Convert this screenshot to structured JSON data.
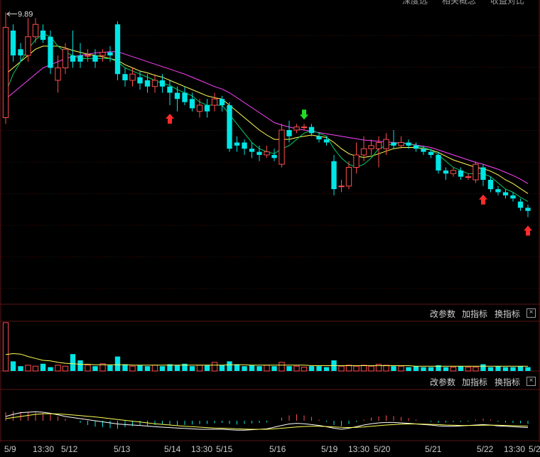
{
  "header": {
    "tabs": [
      "深度选",
      "相关概念",
      "收益对比"
    ]
  },
  "panels": [
    {
      "id": "volume",
      "buttons": [
        "改参数",
        "加指标",
        "换指标"
      ],
      "close_glyph": "×"
    },
    {
      "id": "indicator",
      "buttons": [
        "改参数",
        "加指标",
        "换指标"
      ],
      "close_glyph": "×"
    }
  ],
  "chart_data": {
    "type": "candlestick",
    "high_marker": "9.89",
    "xaxis_labels": [
      "5/9",
      "13:30",
      "5/12",
      "5/13",
      "5/14",
      "13:30",
      "5/15",
      "5/16",
      "5/19",
      "13:30",
      "5/20",
      "5/21",
      "5/22",
      "13:30",
      "5/2"
    ],
    "ylim": [
      5.2,
      10.0
    ],
    "colors": {
      "up": "#ff4d4d",
      "down": "#00e5e5",
      "ma5": "#ffffff",
      "ma10": "#ffff55",
      "ma20": "#00cc66",
      "ma30": "#ff44ff",
      "buy_arrow": "#ff2a2a",
      "sell_arrow": "#22dd22"
    },
    "candles": [
      [
        8.2,
        9.65,
        9.89,
        8.1
      ],
      [
        9.6,
        9.2,
        9.7,
        9.1
      ],
      [
        9.3,
        9.2,
        9.4,
        9.1
      ],
      [
        9.2,
        9.5,
        9.8,
        9.1
      ],
      [
        9.5,
        9.7,
        9.8,
        9.4
      ],
      [
        9.6,
        9.45,
        9.7,
        9.4
      ],
      [
        9.5,
        9.0,
        9.6,
        8.9
      ],
      [
        8.8,
        9.0,
        9.2,
        8.6
      ],
      [
        9.0,
        9.3,
        9.4,
        8.9
      ],
      [
        9.2,
        9.1,
        9.6,
        9.0
      ],
      [
        9.2,
        9.1,
        9.4,
        9.0
      ],
      [
        9.2,
        9.2,
        9.3,
        9.1
      ],
      [
        9.2,
        9.1,
        9.3,
        9.0
      ],
      [
        9.2,
        9.25,
        9.3,
        9.1
      ],
      [
        9.25,
        9.2,
        9.35,
        9.1
      ],
      [
        9.7,
        8.9,
        9.75,
        8.8
      ],
      [
        8.9,
        8.8,
        9.0,
        8.7
      ],
      [
        8.8,
        8.9,
        9.0,
        8.7
      ],
      [
        8.85,
        8.75,
        8.95,
        8.65
      ],
      [
        8.8,
        8.7,
        8.9,
        8.6
      ],
      [
        8.7,
        8.8,
        8.9,
        8.6
      ],
      [
        8.8,
        8.7,
        8.9,
        8.6
      ],
      [
        8.7,
        8.6,
        8.8,
        8.4
      ],
      [
        8.6,
        8.5,
        8.7,
        8.3
      ],
      [
        8.6,
        8.45,
        8.7,
        8.4
      ],
      [
        8.5,
        8.35,
        8.6,
        8.3
      ],
      [
        8.3,
        8.4,
        8.5,
        8.2
      ],
      [
        8.4,
        8.3,
        8.5,
        8.2
      ],
      [
        8.4,
        8.5,
        8.6,
        8.3
      ],
      [
        8.5,
        8.4,
        8.55,
        8.3
      ],
      [
        8.4,
        7.7,
        8.45,
        7.65
      ],
      [
        7.8,
        7.75,
        7.9,
        7.65
      ],
      [
        7.8,
        7.7,
        7.85,
        7.6
      ],
      [
        7.7,
        7.65,
        7.8,
        7.55
      ],
      [
        7.65,
        7.6,
        7.75,
        7.5
      ],
      [
        7.6,
        7.65,
        7.75,
        7.55
      ],
      [
        7.6,
        7.55,
        7.7,
        7.5
      ],
      [
        7.45,
        8.0,
        8.1,
        7.4
      ],
      [
        8.0,
        7.9,
        8.15,
        7.8
      ],
      [
        8.0,
        8.05,
        8.1,
        7.95
      ],
      [
        8.05,
        8.05,
        8.1,
        8.0
      ],
      [
        8.05,
        7.95,
        8.1,
        7.9
      ],
      [
        7.9,
        7.85,
        7.95,
        7.8
      ],
      [
        7.85,
        7.8,
        7.9,
        7.75
      ],
      [
        7.5,
        7.05,
        7.6,
        6.95
      ],
      [
        7.1,
        7.1,
        7.2,
        7.0
      ],
      [
        7.1,
        7.4,
        7.5,
        7.05
      ],
      [
        7.4,
        7.6,
        7.8,
        7.3
      ],
      [
        7.6,
        7.7,
        7.9,
        7.5
      ],
      [
        7.7,
        7.75,
        7.85,
        7.6
      ],
      [
        7.7,
        7.8,
        7.9,
        7.4
      ],
      [
        7.7,
        7.85,
        7.95,
        7.6
      ],
      [
        7.8,
        7.75,
        8.0,
        7.7
      ],
      [
        7.75,
        7.8,
        7.9,
        7.7
      ],
      [
        7.8,
        7.75,
        7.85,
        7.7
      ],
      [
        7.75,
        7.7,
        7.8,
        7.65
      ],
      [
        7.7,
        7.65,
        7.75,
        7.6
      ],
      [
        7.65,
        7.6,
        7.7,
        7.55
      ],
      [
        7.6,
        7.35,
        7.65,
        7.3
      ],
      [
        7.35,
        7.3,
        7.4,
        7.2
      ],
      [
        7.3,
        7.35,
        7.4,
        7.25
      ],
      [
        7.35,
        7.25,
        7.4,
        7.2
      ],
      [
        7.25,
        7.25,
        7.3,
        7.2
      ],
      [
        7.2,
        7.45,
        7.5,
        7.15
      ],
      [
        7.4,
        7.2,
        7.45,
        7.1
      ],
      [
        7.2,
        7.05,
        7.25,
        7.0
      ],
      [
        7.05,
        7.0,
        7.1,
        6.95
      ],
      [
        7.0,
        6.95,
        7.05,
        6.9
      ],
      [
        6.95,
        6.9,
        7.0,
        6.85
      ],
      [
        6.85,
        6.75,
        6.9,
        6.7
      ],
      [
        6.75,
        6.7,
        6.8,
        6.6
      ]
    ],
    "ma_fast": [
      8.6,
      8.9,
      9.1,
      9.3,
      9.45,
      9.55,
      9.5,
      9.35,
      9.25,
      9.2,
      9.15,
      9.15,
      9.15,
      9.15,
      9.15,
      9.1,
      9.0,
      8.95,
      8.9,
      8.85,
      8.8,
      8.75,
      8.72,
      8.65,
      8.6,
      8.55,
      8.45,
      8.4,
      8.4,
      8.4,
      8.25,
      8.1,
      7.95,
      7.8,
      7.7,
      7.65,
      7.62,
      7.7,
      7.75,
      7.85,
      7.95,
      8.0,
      7.95,
      7.9,
      7.7,
      7.55,
      7.45,
      7.4,
      7.45,
      7.55,
      7.7,
      7.75,
      7.78,
      7.8,
      7.78,
      7.75,
      7.72,
      7.68,
      7.6,
      7.5,
      7.4,
      7.35,
      7.3,
      7.3,
      7.3,
      7.25,
      7.15,
      7.05,
      7.0,
      6.92,
      6.85
    ],
    "ma_mid": [
      8.9,
      9.0,
      9.1,
      9.2,
      9.3,
      9.35,
      9.35,
      9.35,
      9.32,
      9.28,
      9.25,
      9.22,
      9.2,
      9.18,
      9.15,
      9.12,
      9.05,
      9.0,
      8.95,
      8.92,
      8.88,
      8.85,
      8.8,
      8.75,
      8.7,
      8.65,
      8.6,
      8.55,
      8.52,
      8.5,
      8.4,
      8.3,
      8.2,
      8.1,
      8.0,
      7.92,
      7.85,
      7.85,
      7.85,
      7.88,
      7.9,
      7.92,
      7.9,
      7.88,
      7.8,
      7.7,
      7.62,
      7.58,
      7.56,
      7.58,
      7.62,
      7.66,
      7.7,
      7.72,
      7.72,
      7.72,
      7.7,
      7.68,
      7.64,
      7.58,
      7.52,
      7.48,
      7.44,
      7.4,
      7.38,
      7.34,
      7.28,
      7.2,
      7.14,
      7.06,
      6.98
    ],
    "ma_slow": [
      8.5,
      8.6,
      8.7,
      8.8,
      8.9,
      9.0,
      9.05,
      9.1,
      9.15,
      9.18,
      9.2,
      9.22,
      9.24,
      9.25,
      9.26,
      9.26,
      9.22,
      9.18,
      9.14,
      9.1,
      9.06,
      9.02,
      8.98,
      8.94,
      8.9,
      8.85,
      8.8,
      8.75,
      8.7,
      8.66,
      8.6,
      8.52,
      8.44,
      8.36,
      8.28,
      8.2,
      8.12,
      8.08,
      8.05,
      8.02,
      8.0,
      7.98,
      7.96,
      7.94,
      7.92,
      7.9,
      7.88,
      7.86,
      7.84,
      7.83,
      7.82,
      7.81,
      7.8,
      7.79,
      7.78,
      7.76,
      7.74,
      7.72,
      7.68,
      7.64,
      7.6,
      7.56,
      7.52,
      7.48,
      7.45,
      7.41,
      7.37,
      7.32,
      7.27,
      7.21,
      7.14
    ],
    "buy_signals": [
      22,
      64,
      70
    ],
    "sell_signals": [
      40
    ],
    "volume": [
      100,
      20,
      10,
      12,
      10,
      15,
      8,
      12,
      10,
      35,
      22,
      12,
      10,
      15,
      12,
      30,
      14,
      10,
      12,
      10,
      12,
      10,
      14,
      12,
      15,
      10,
      12,
      12,
      18,
      12,
      20,
      14,
      10,
      12,
      10,
      12,
      10,
      18,
      10,
      10,
      8,
      10,
      10,
      8,
      22,
      10,
      12,
      10,
      12,
      10,
      14,
      12,
      10,
      10,
      8,
      10,
      8,
      8,
      12,
      8,
      8,
      10,
      8,
      8,
      14,
      8,
      10,
      8,
      8,
      10,
      8
    ],
    "volume_ma": [
      34,
      36,
      35,
      30,
      26,
      22,
      21,
      18,
      16,
      15,
      14,
      14,
      13,
      13,
      13,
      13,
      13,
      12,
      12,
      12,
      12,
      12,
      12,
      12,
      12,
      12,
      12,
      12,
      12,
      12,
      13,
      13,
      13,
      12,
      12,
      12,
      12,
      12,
      12,
      12,
      12,
      11,
      11,
      11,
      11,
      11,
      11,
      11,
      11,
      11,
      11,
      11,
      11,
      11,
      11,
      10,
      10,
      10,
      10,
      10,
      10,
      10,
      10,
      10,
      10,
      10,
      10,
      10,
      10,
      10,
      10
    ],
    "osc": [
      0.4,
      0.45,
      0.42,
      0.4,
      0.38,
      0.36,
      0.3,
      0.2,
      0.1,
      0.0,
      -0.1,
      -0.2,
      -0.28,
      -0.3,
      -0.35,
      -0.38,
      -0.3,
      -0.25,
      -0.2,
      -0.22,
      -0.2,
      -0.18,
      -0.2,
      -0.22,
      -0.2,
      -0.18,
      -0.16,
      -0.15,
      -0.12,
      -0.1,
      -0.15,
      -0.18,
      -0.15,
      -0.12,
      -0.1,
      -0.08,
      0.0,
      0.15,
      0.25,
      0.3,
      0.25,
      0.18,
      0.05,
      -0.05,
      -0.2,
      -0.25,
      -0.15,
      -0.05,
      0.05,
      0.15,
      0.2,
      0.25,
      0.22,
      0.18,
      0.12,
      0.05,
      0.0,
      -0.05,
      -0.1,
      -0.08,
      -0.06,
      -0.05,
      -0.04,
      0.05,
      0.1,
      0.05,
      -0.05,
      -0.08,
      -0.1,
      -0.12,
      -0.15
    ],
    "osc_dif": [
      0.2,
      0.3,
      0.38,
      0.4,
      0.42,
      0.4,
      0.35,
      0.28,
      0.2,
      0.15,
      0.1,
      0.05,
      0.0,
      -0.05,
      -0.1,
      -0.15,
      -0.18,
      -0.2,
      -0.22,
      -0.25,
      -0.28,
      -0.3,
      -0.32,
      -0.34,
      -0.36,
      -0.38,
      -0.4,
      -0.4,
      -0.4,
      -0.4,
      -0.42,
      -0.44,
      -0.44,
      -0.42,
      -0.4,
      -0.38,
      -0.3,
      -0.22,
      -0.15,
      -0.12,
      -0.14,
      -0.18,
      -0.22,
      -0.28,
      -0.35,
      -0.4,
      -0.35,
      -0.28,
      -0.2,
      -0.14,
      -0.1,
      -0.08,
      -0.08,
      -0.1,
      -0.12,
      -0.15,
      -0.18,
      -0.2,
      -0.24,
      -0.26,
      -0.26,
      -0.24,
      -0.22,
      -0.2,
      -0.18,
      -0.2,
      -0.24,
      -0.26,
      -0.28,
      -0.3,
      -0.32
    ],
    "osc_dea": [
      0.1,
      0.15,
      0.2,
      0.25,
      0.3,
      0.33,
      0.33,
      0.32,
      0.3,
      0.27,
      0.24,
      0.21,
      0.18,
      0.14,
      0.1,
      0.06,
      0.02,
      -0.02,
      -0.06,
      -0.1,
      -0.14,
      -0.17,
      -0.2,
      -0.23,
      -0.26,
      -0.28,
      -0.3,
      -0.32,
      -0.34,
      -0.35,
      -0.36,
      -0.38,
      -0.39,
      -0.4,
      -0.4,
      -0.4,
      -0.38,
      -0.35,
      -0.32,
      -0.29,
      -0.27,
      -0.26,
      -0.26,
      -0.27,
      -0.29,
      -0.31,
      -0.32,
      -0.31,
      -0.29,
      -0.26,
      -0.23,
      -0.2,
      -0.18,
      -0.16,
      -0.15,
      -0.15,
      -0.16,
      -0.17,
      -0.18,
      -0.2,
      -0.21,
      -0.22,
      -0.22,
      -0.22,
      -0.21,
      -0.21,
      -0.21,
      -0.22,
      -0.23,
      -0.24,
      -0.25
    ]
  }
}
